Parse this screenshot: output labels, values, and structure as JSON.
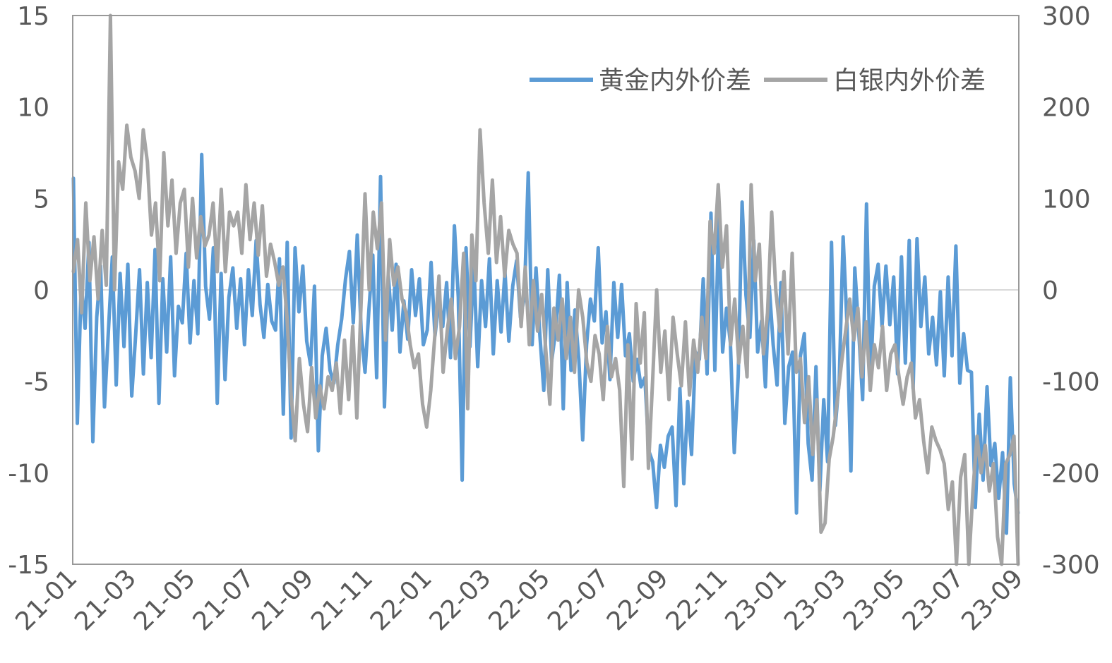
{
  "colors": {
    "gold": "#5B9BD5",
    "silver": "#A5A5A5",
    "axis": "#999999",
    "zero": "#D9D9D9",
    "text": "#595959"
  },
  "chart_data": {
    "type": "line",
    "title": "",
    "xlabel": "",
    "ylabel": "",
    "y_left": {
      "range": [
        -15,
        15
      ],
      "ticks": [
        15,
        10,
        5,
        0,
        -5,
        -10,
        -15
      ],
      "tick_labels": [
        "15",
        "10",
        "5",
        "0",
        "-5",
        "-10",
        "-15"
      ]
    },
    "y_right": {
      "range": [
        -300,
        300
      ],
      "ticks": [
        300,
        200,
        100,
        0,
        -100,
        -200,
        -300
      ],
      "tick_labels": [
        "300",
        "200",
        "100",
        "0",
        "-100",
        "-200",
        "-300"
      ]
    },
    "x_ticks": [
      "21-01",
      "21-03",
      "21-05",
      "21-07",
      "21-09",
      "21-11",
      "22-01",
      "22-03",
      "22-05",
      "22-07",
      "22-09",
      "22-11",
      "23-01",
      "23-03",
      "23-05",
      "23-07",
      "23-09"
    ],
    "x_range": [
      "2021-01",
      "2023-09"
    ],
    "grid": false,
    "legend_position": "top-right",
    "series": [
      {
        "name": "黄金内外价差",
        "axis": "left",
        "color": "#5B9BD5",
        "monthly_values": [
          [
            6.1,
            -7.3,
            0.4,
            -2.1,
            2.6,
            -8.3,
            -1.5,
            1.3,
            -6.4,
            -2.2,
            1.8,
            -5.2,
            0.9,
            -3.1,
            1.4,
            -5.8
          ],
          [
            -2.5,
            1.1,
            -4.6,
            0.4,
            -3.7,
            2.2,
            -6.2,
            0.6,
            -3.4,
            1.8,
            -4.7,
            -0.9
          ],
          [
            -1.8,
            2.0,
            -2.9,
            0.5,
            -2.4,
            7.4,
            0.2,
            -1.6,
            2.3,
            -6.2,
            0.9,
            -4.9
          ],
          [
            -0.4,
            1.2,
            -2.1,
            0.6,
            -3.0,
            1.1,
            -1.4,
            2.7,
            -0.8,
            -2.6,
            0.3,
            -1.7
          ],
          [
            -2.2,
            1.7,
            -6.8,
            2.6,
            -8.1,
            2.3,
            -1.2,
            1.3,
            -2.8,
            -4.1,
            0.2,
            -8.8
          ],
          [
            -3.6,
            -2.1,
            -4.4,
            -5.1,
            -3.0,
            -1.6,
            0.6,
            2.1,
            -1.8,
            3.0,
            -2.2,
            -4.5
          ],
          [
            -1.1,
            1.9,
            -4.8,
            6.2,
            -6.4,
            0.8,
            -2.2,
            1.4,
            -3.4,
            -0.6,
            -2.7,
            1.1
          ],
          [
            -1.4,
            0.6,
            -3.0,
            -2.2,
            1.5,
            -2.5,
            -0.6,
            -2.0,
            0.4,
            -3.7,
            3.5,
            -0.4
          ],
          [
            -10.4,
            2.3,
            -3.1,
            1.5,
            -4.2,
            0.5,
            -2.0,
            1.7,
            -3.5,
            0.5,
            -2.3,
            1.0
          ],
          [
            -2.8,
            0.2,
            1.6,
            -1.5,
            -0.4,
            6.4,
            -3.0,
            1.2,
            -2.5,
            -5.5,
            1.1,
            -3.9
          ],
          [
            -2.3,
            0.8,
            -6.5,
            0.4,
            -4.4,
            -1.1,
            -3.8,
            -8.2,
            -3.0,
            -0.5,
            -1.7,
            2.3
          ],
          [
            -2.9,
            -1.2,
            -4.9,
            0.4,
            -2.6,
            0.3,
            -3.6,
            -2.4,
            -5.0,
            -3.8,
            -5.3,
            -4.8
          ],
          [
            -8.8,
            -9.4,
            -11.9,
            -8.5,
            -9.7,
            -8.0,
            -7.5,
            -11.8,
            -5.4,
            -10.6,
            -6.1,
            -9.0
          ],
          [
            -3.4,
            -3.8,
            0.6,
            -4.6,
            4.2,
            -4.4,
            3.9,
            -3.4,
            -1.0,
            -2.9,
            -8.9,
            -4.7
          ],
          [
            4.8,
            -0.3,
            -2.6,
            2.7,
            -3.4,
            -1.7,
            -5.3,
            0.2,
            -3.0,
            -5.2,
            0.4,
            -7.3
          ],
          [
            -4.2,
            -3.4,
            -12.2,
            -3.6,
            -2.4,
            -8.4,
            -10.4,
            -4.2,
            -11.0,
            -6.0,
            -9.4,
            2.6
          ],
          [
            -7.4,
            -4.9,
            2.9,
            -1.9,
            -9.9,
            1.2,
            -2.2,
            -6.0,
            4.7,
            -5.2,
            0.2,
            1.4
          ],
          [
            -2.0,
            1.3,
            -1.9,
            0.7,
            -4.6,
            1.8,
            -4.0,
            2.7,
            -5.4,
            2.8,
            -2.0,
            0.7
          ],
          [
            -3.5,
            -1.5,
            -4.1,
            -0.1,
            -4.7,
            0.7,
            -3.6,
            2.4,
            -5.1,
            -2.4,
            -4.4,
            -4.5
          ],
          [
            -11.9,
            -6.8,
            -10.4,
            -5.3,
            -9.6,
            -8.4,
            -11.4,
            -8.9,
            -13.3,
            -4.8,
            -10.6,
            -12.2
          ]
        ]
      },
      {
        "name": "白银内外价差",
        "axis": "right",
        "color": "#A5A5A5",
        "monthly_values": [
          [
            20,
            55,
            -25,
            95,
            10,
            58,
            -10,
            65,
            5,
            300,
            0,
            140,
            110,
            180,
            145,
            130
          ],
          [
            100,
            175,
            140,
            60,
            95,
            10,
            150,
            70,
            120,
            40,
            95,
            110
          ],
          [
            25,
            100,
            35,
            80,
            48,
            60,
            95,
            20,
            110,
            20,
            85,
            70
          ],
          [
            85,
            40,
            115,
            55,
            95,
            38,
            92,
            15,
            50,
            30,
            5,
            25
          ],
          [
            -30,
            -115,
            -165,
            -75,
            -125,
            -155,
            -85,
            -140,
            -105,
            -130,
            -95,
            -110
          ],
          [
            -80,
            -135,
            -55,
            -120,
            -40,
            -140,
            -20,
            105,
            0,
            85,
            45,
            95
          ],
          [
            -55,
            55,
            5,
            25,
            -10,
            -25,
            -60,
            -85,
            -70,
            -125,
            -150,
            -110
          ],
          [
            -50,
            15,
            -90,
            -45,
            -10,
            -75,
            -40,
            40,
            -130,
            60,
            10,
            175
          ],
          [
            95,
            40,
            120,
            30,
            80,
            15,
            65,
            50,
            40,
            -40,
            25,
            -60
          ],
          [
            10,
            -45,
            -5,
            -65,
            -125,
            -20,
            -55,
            -10,
            -75,
            -30,
            -90,
            0
          ],
          [
            -30,
            -80,
            -100,
            -50,
            -70,
            -120,
            -40,
            -95,
            -75,
            -110,
            -215,
            -60
          ],
          [
            -185,
            -15,
            -80,
            -25,
            -195,
            -100,
            0,
            -90,
            -45,
            -120,
            -30,
            -70
          ],
          [
            -105,
            -35,
            -115,
            -55,
            -90,
            -30,
            -75,
            75,
            40,
            115,
            25,
            70
          ],
          [
            -60,
            -10,
            -80,
            -40,
            -95,
            115,
            10,
            50,
            -70,
            -25,
            85,
            0
          ],
          [
            -45,
            20,
            -70,
            40,
            -90,
            -75,
            -145,
            -95,
            -180,
            -120,
            -265,
            -255
          ],
          [
            -185,
            -160,
            -120,
            -80,
            -45,
            -10,
            -55,
            -20,
            -95,
            -35,
            -110,
            -60
          ],
          [
            -85,
            -40,
            -110,
            -70,
            -60,
            -95,
            -125,
            -95,
            -80,
            -140,
            -120,
            -165
          ],
          [
            -200,
            -150,
            -165,
            -175,
            -190,
            -240,
            -210,
            -300,
            -205,
            -180,
            -300,
            -220
          ],
          [
            -160,
            -200,
            -170,
            -220,
            -190,
            -270,
            -300,
            -190,
            -180,
            -160,
            -300
          ]
        ]
      }
    ]
  }
}
